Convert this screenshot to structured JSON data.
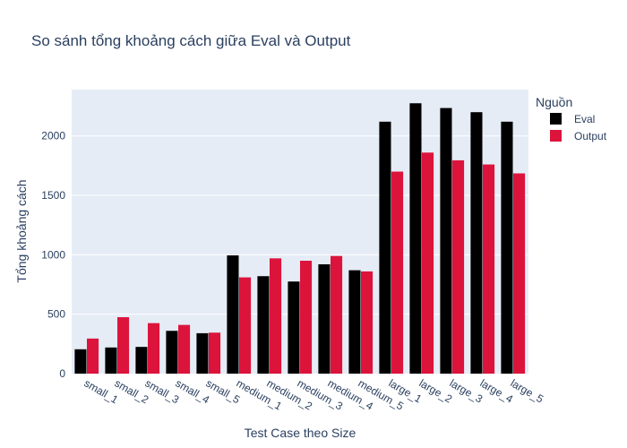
{
  "chart_data": {
    "type": "bar",
    "title": "So sánh tổng khoảng cách giữa Eval và Output",
    "xlabel": "Test Case theo Size",
    "ylabel": "Tổng khoảng cách",
    "categories": [
      "small_1",
      "small_2",
      "small_3",
      "small_4",
      "small_5",
      "medium_1",
      "medium_2",
      "medium_3",
      "medium_4",
      "medium_5",
      "large_1",
      "large_2",
      "large_3",
      "large_4",
      "large_5"
    ],
    "series": [
      {
        "name": "Eval",
        "color": "#000000",
        "values": [
          205,
          220,
          225,
          360,
          340,
          995,
          820,
          775,
          920,
          870,
          2120,
          2275,
          2235,
          2200,
          2120
        ]
      },
      {
        "name": "Output",
        "color": "#dc143c",
        "values": [
          295,
          475,
          425,
          410,
          345,
          810,
          970,
          950,
          990,
          860,
          1700,
          1860,
          1795,
          1760,
          1685
        ]
      }
    ],
    "ylim": [
      0,
      2390
    ],
    "yticks": [
      0,
      500,
      1000,
      1500,
      2000
    ],
    "legend": {
      "title": "Nguồn",
      "position": "top-right"
    },
    "grid": true,
    "plot_bg": "#e5ecf6",
    "text_color": "#2a3f5f"
  }
}
